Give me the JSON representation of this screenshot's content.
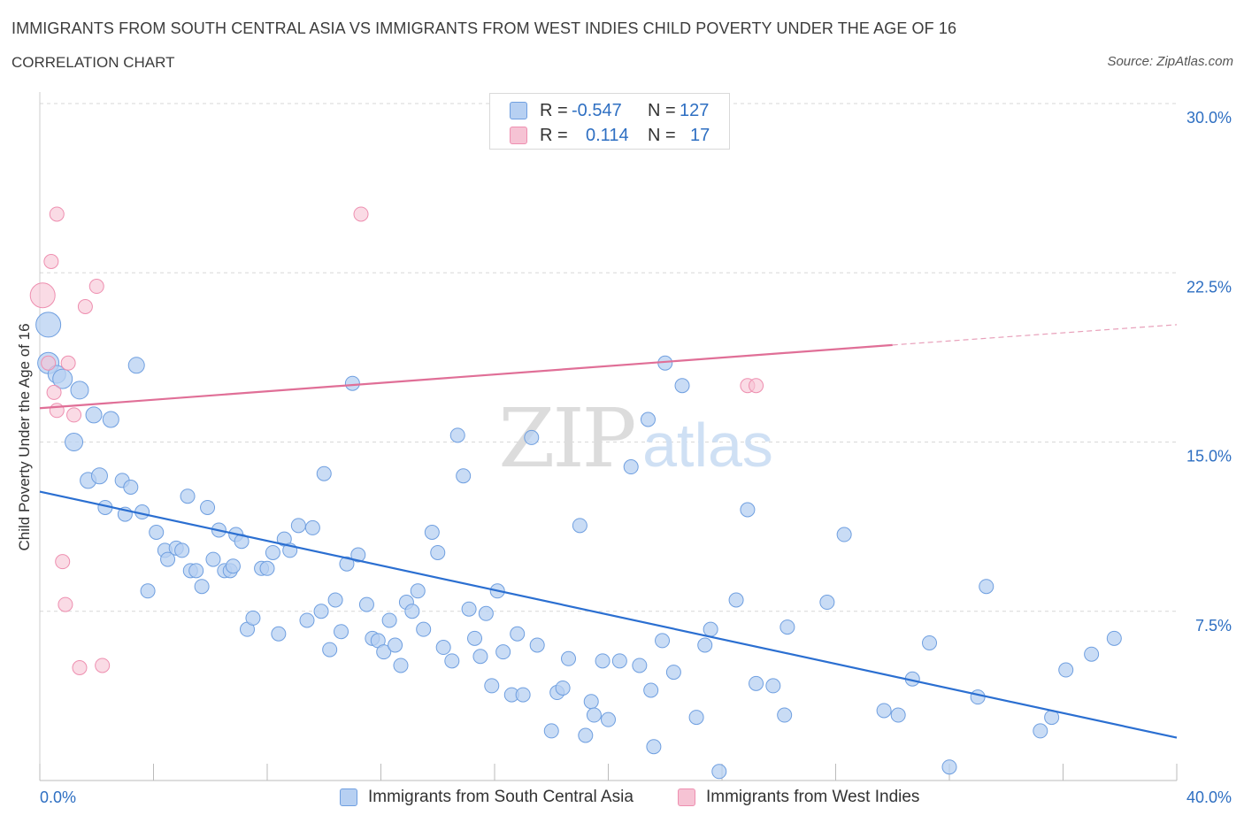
{
  "header": {
    "title": "IMMIGRANTS FROM SOUTH CENTRAL ASIA VS IMMIGRANTS FROM WEST INDIES CHILD POVERTY UNDER THE AGE OF 16",
    "subtitle": "CORRELATION CHART",
    "source": "Source: ZipAtlas.com"
  },
  "watermark": {
    "zip": "ZIP",
    "atlas": "atlas"
  },
  "stats_legend": {
    "rows": [
      {
        "r_label": "R =",
        "r_value": "-0.547",
        "n_label": "N =",
        "n_value": "127",
        "color": "#6f9fe0"
      },
      {
        "r_label": "R =",
        "r_value": "0.114",
        "n_label": "N =",
        "n_value": "17",
        "color": "#ee8fb0"
      }
    ]
  },
  "chart_data": {
    "type": "scatter",
    "ylabel": "Child Poverty Under the Age of 16",
    "xlim": [
      0,
      40
    ],
    "ylim": [
      0,
      30
    ],
    "x_tick_labels": [
      {
        "value": 0,
        "label": "0.0%"
      },
      {
        "value": 40,
        "label": "40.0%"
      }
    ],
    "y_tick_labels": [
      {
        "value": 7.5,
        "label": "7.5%"
      },
      {
        "value": 15,
        "label": "15.0%"
      },
      {
        "value": 22.5,
        "label": "22.5%"
      },
      {
        "value": 30,
        "label": "30.0%"
      }
    ],
    "grid": "horizontal-dashed",
    "series": [
      {
        "name": "Immigrants from South Central Asia",
        "color": "#6f9fe0",
        "fill": "#b7d0f2",
        "regression": {
          "x": [
            0,
            40
          ],
          "y": [
            12.8,
            1.9
          ],
          "r": -0.547,
          "n": 127
        },
        "points": [
          [
            0.3,
            20.2,
            14
          ],
          [
            0.3,
            18.5,
            12
          ],
          [
            0.6,
            18.0,
            10
          ],
          [
            0.8,
            17.8,
            11
          ],
          [
            1.4,
            17.3,
            10
          ],
          [
            1.2,
            15.0,
            10
          ],
          [
            1.9,
            16.2,
            9
          ],
          [
            2.5,
            16.0,
            9
          ],
          [
            3.4,
            18.4,
            9
          ],
          [
            1.7,
            13.3,
            9
          ],
          [
            2.1,
            13.5,
            9
          ],
          [
            2.3,
            12.1,
            8
          ],
          [
            2.9,
            13.3,
            8
          ],
          [
            3.0,
            11.8,
            8
          ],
          [
            3.2,
            13.0,
            8
          ],
          [
            3.6,
            11.9,
            8
          ],
          [
            4.1,
            11.0,
            8
          ],
          [
            4.4,
            10.2,
            8
          ],
          [
            4.5,
            9.8,
            8
          ],
          [
            4.8,
            10.3,
            8
          ],
          [
            5.0,
            10.2,
            8
          ],
          [
            3.8,
            8.4,
            8
          ],
          [
            5.2,
            12.6,
            8
          ],
          [
            5.3,
            9.3,
            8
          ],
          [
            5.5,
            9.3,
            8
          ],
          [
            5.7,
            8.6,
            8
          ],
          [
            5.9,
            12.1,
            8
          ],
          [
            6.1,
            9.8,
            8
          ],
          [
            6.3,
            11.1,
            8
          ],
          [
            6.5,
            9.3,
            8
          ],
          [
            6.7,
            9.3,
            8
          ],
          [
            6.8,
            9.5,
            8
          ],
          [
            6.9,
            10.9,
            8
          ],
          [
            7.1,
            10.6,
            8
          ],
          [
            7.3,
            6.7,
            8
          ],
          [
            7.5,
            7.2,
            8
          ],
          [
            7.8,
            9.4,
            8
          ],
          [
            8.0,
            9.4,
            8
          ],
          [
            8.2,
            10.1,
            8
          ],
          [
            8.4,
            6.5,
            8
          ],
          [
            8.6,
            10.7,
            8
          ],
          [
            8.8,
            10.2,
            8
          ],
          [
            9.1,
            11.3,
            8
          ],
          [
            9.4,
            7.1,
            8
          ],
          [
            9.6,
            11.2,
            8
          ],
          [
            9.9,
            7.5,
            8
          ],
          [
            10.0,
            13.6,
            8
          ],
          [
            10.2,
            5.8,
            8
          ],
          [
            10.4,
            8.0,
            8
          ],
          [
            10.6,
            6.6,
            8
          ],
          [
            10.8,
            9.6,
            8
          ],
          [
            11.0,
            17.6,
            8
          ],
          [
            11.2,
            10.0,
            8
          ],
          [
            11.5,
            7.8,
            8
          ],
          [
            11.7,
            6.3,
            8
          ],
          [
            11.9,
            6.2,
            8
          ],
          [
            12.1,
            5.7,
            8
          ],
          [
            12.3,
            7.1,
            8
          ],
          [
            12.5,
            6.0,
            8
          ],
          [
            12.7,
            5.1,
            8
          ],
          [
            12.9,
            7.9,
            8
          ],
          [
            13.1,
            7.5,
            8
          ],
          [
            13.3,
            8.4,
            8
          ],
          [
            13.5,
            6.7,
            8
          ],
          [
            13.8,
            11.0,
            8
          ],
          [
            14.0,
            10.1,
            8
          ],
          [
            14.2,
            5.9,
            8
          ],
          [
            14.5,
            5.3,
            8
          ],
          [
            14.7,
            15.3,
            8
          ],
          [
            14.9,
            13.5,
            8
          ],
          [
            15.1,
            7.6,
            8
          ],
          [
            15.3,
            6.3,
            8
          ],
          [
            15.5,
            5.5,
            8
          ],
          [
            15.7,
            7.4,
            8
          ],
          [
            15.9,
            4.2,
            8
          ],
          [
            16.1,
            8.4,
            8
          ],
          [
            16.3,
            5.7,
            8
          ],
          [
            16.6,
            3.8,
            8
          ],
          [
            16.8,
            6.5,
            8
          ],
          [
            17.0,
            3.8,
            8
          ],
          [
            17.3,
            15.2,
            8
          ],
          [
            17.5,
            6.0,
            8
          ],
          [
            17.7,
            29.3,
            8
          ],
          [
            18.0,
            2.2,
            8
          ],
          [
            18.2,
            3.9,
            8
          ],
          [
            18.4,
            4.1,
            8
          ],
          [
            18.6,
            5.4,
            8
          ],
          [
            19.0,
            11.3,
            8
          ],
          [
            19.2,
            2.0,
            8
          ],
          [
            19.4,
            3.5,
            8
          ],
          [
            19.5,
            2.9,
            8
          ],
          [
            19.8,
            5.3,
            8
          ],
          [
            20.0,
            2.7,
            8
          ],
          [
            20.4,
            5.3,
            8
          ],
          [
            20.8,
            13.9,
            8
          ],
          [
            21.1,
            5.1,
            8
          ],
          [
            21.4,
            16.0,
            8
          ],
          [
            21.5,
            4.0,
            8
          ],
          [
            21.6,
            1.5,
            8
          ],
          [
            21.9,
            6.2,
            8
          ],
          [
            22.0,
            18.5,
            8
          ],
          [
            22.3,
            4.8,
            8
          ],
          [
            22.6,
            17.5,
            8
          ],
          [
            23.1,
            2.8,
            8
          ],
          [
            23.4,
            6.0,
            8
          ],
          [
            23.6,
            6.7,
            8
          ],
          [
            23.9,
            0.4,
            8
          ],
          [
            24.5,
            8.0,
            8
          ],
          [
            24.9,
            12.0,
            8
          ],
          [
            25.2,
            4.3,
            8
          ],
          [
            25.8,
            4.2,
            8
          ],
          [
            26.2,
            2.9,
            8
          ],
          [
            26.3,
            6.8,
            8
          ],
          [
            27.7,
            7.9,
            8
          ],
          [
            28.3,
            10.9,
            8
          ],
          [
            29.7,
            3.1,
            8
          ],
          [
            30.2,
            2.9,
            8
          ],
          [
            30.7,
            4.5,
            8
          ],
          [
            31.3,
            6.1,
            8
          ],
          [
            32.0,
            0.6,
            8
          ],
          [
            33.0,
            3.7,
            8
          ],
          [
            33.3,
            8.6,
            8
          ],
          [
            35.2,
            2.2,
            8
          ],
          [
            35.6,
            2.8,
            8
          ],
          [
            36.1,
            4.9,
            8
          ],
          [
            37.0,
            5.6,
            8
          ],
          [
            37.8,
            6.3,
            8
          ]
        ]
      },
      {
        "name": "Immigrants from West Indies",
        "color": "#ee8fb0",
        "fill": "#f6c3d4",
        "regression": {
          "x": [
            0,
            30
          ],
          "y": [
            16.5,
            19.3
          ],
          "r": 0.114,
          "n": 17,
          "dashed_to": [
            40,
            20.2
          ]
        },
        "points": [
          [
            0.1,
            21.5,
            14
          ],
          [
            0.3,
            18.5,
            8
          ],
          [
            0.4,
            23.0,
            8
          ],
          [
            0.5,
            17.2,
            8
          ],
          [
            0.6,
            25.1,
            8
          ],
          [
            0.6,
            16.4,
            8
          ],
          [
            0.8,
            9.7,
            8
          ],
          [
            0.9,
            7.8,
            8
          ],
          [
            1.0,
            18.5,
            8
          ],
          [
            1.2,
            16.2,
            8
          ],
          [
            1.4,
            5.0,
            8
          ],
          [
            1.6,
            21.0,
            8
          ],
          [
            2.0,
            21.9,
            8
          ],
          [
            2.2,
            5.1,
            8
          ],
          [
            11.3,
            25.1,
            8
          ],
          [
            24.9,
            17.5,
            8
          ],
          [
            25.2,
            17.5,
            8
          ]
        ]
      }
    ]
  }
}
